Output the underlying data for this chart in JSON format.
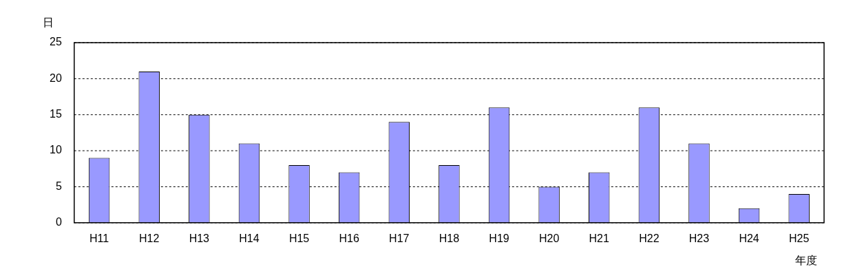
{
  "chart_data": {
    "type": "bar",
    "ylabel": "日",
    "xlabel": "年度",
    "categories": [
      "H11",
      "H12",
      "H13",
      "H14",
      "H15",
      "H16",
      "H17",
      "H18",
      "H19",
      "H20",
      "H21",
      "H22",
      "H23",
      "H24",
      "H25"
    ],
    "values": [
      9,
      21,
      15,
      11,
      8,
      7,
      14,
      8,
      16,
      5,
      7,
      16,
      11,
      2,
      4
    ],
    "color": "#9999ff",
    "ylim": [
      0,
      25
    ],
    "yticks": [
      0,
      5,
      10,
      15,
      20,
      25
    ],
    "grid": "y",
    "legend": false
  }
}
